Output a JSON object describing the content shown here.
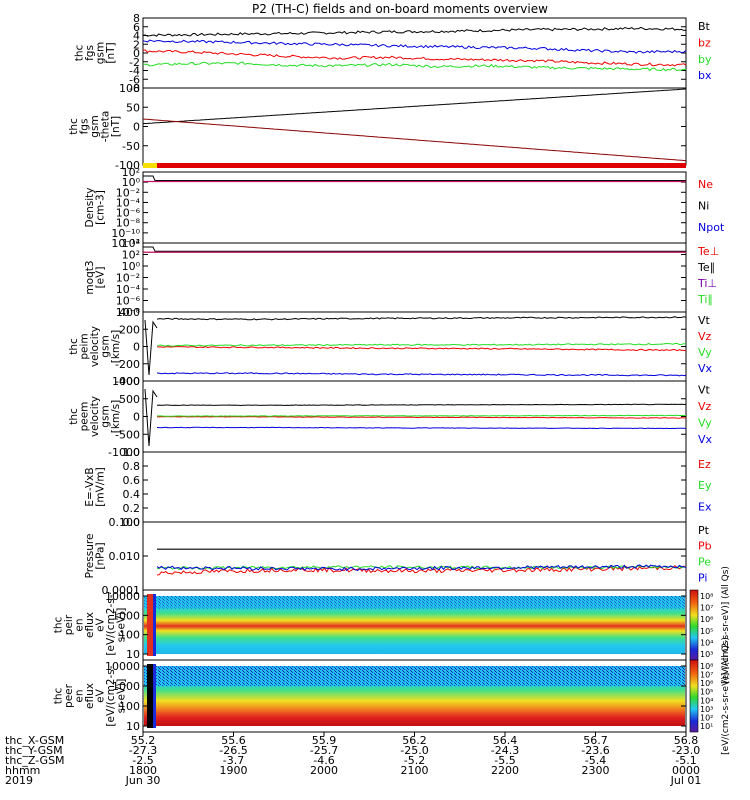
{
  "title": "P2 (TH-C) fields and on-board moments overview",
  "colors": {
    "black": "#000000",
    "red": "#ee0000",
    "blue": "#0000dd",
    "green": "#22dd22",
    "yellow": "#f5e000"
  },
  "chart_data": [
    {
      "type": "line",
      "ylabel": [
        "thc",
        "fgs",
        "gsm",
        "[nT]"
      ],
      "ytick_labels": [
        "8",
        "6",
        "4",
        "2",
        "0",
        "-2",
        "-4",
        "-6",
        "-8"
      ],
      "ylim": [
        -8,
        8
      ],
      "series": [
        {
          "name": "Bt",
          "color": "black",
          "values": [
            4.2,
            4.3,
            4.5,
            4.6,
            4.8,
            5.0,
            5.1,
            5.3,
            5.5,
            5.6,
            5.8,
            5.6
          ]
        },
        {
          "name": "bz",
          "color": "red",
          "values": [
            0.5,
            0.2,
            -0.3,
            -0.8,
            -1.2,
            -1.0,
            -1.4,
            -1.6,
            -1.8,
            -2.3,
            -2.6,
            -2.8
          ]
        },
        {
          "name": "by",
          "color": "green",
          "values": [
            -2.8,
            -2.5,
            -2.4,
            -2.9,
            -3.0,
            -2.7,
            -3.2,
            -3.0,
            -3.4,
            -3.6,
            -3.8,
            -3.9
          ]
        },
        {
          "name": "bx",
          "color": "blue",
          "values": [
            2.9,
            2.7,
            2.5,
            2.2,
            2.0,
            1.7,
            1.5,
            1.3,
            1.1,
            0.6,
            0.2,
            0.4
          ]
        }
      ]
    },
    {
      "type": "line",
      "ylabel": [
        "thc",
        "fgs",
        "gsm",
        "-theta",
        "[nT]"
      ],
      "ytick_labels": [
        "100",
        "50",
        "0",
        "-50",
        "-100"
      ],
      "ylim": [
        -125,
        100
      ],
      "series": [
        {
          "name": "",
          "color": "black",
          "values": [
            -4,
            100
          ]
        },
        {
          "name": "",
          "color": "darkred",
          "values": [
            10,
            -115
          ]
        }
      ]
    },
    {
      "type": "line",
      "ylabel": [
        "Density",
        "[cm-3]"
      ],
      "ytick_labels": [
        "10²",
        "10⁰",
        "10⁻²",
        "10⁻⁴",
        "10⁻⁶",
        "10⁻⁸",
        "10⁻¹⁰",
        "10⁻¹²"
      ],
      "series": [
        {
          "name": "Ne",
          "color": "red"
        },
        {
          "name": "Ni",
          "color": "black"
        },
        {
          "name": "Npot",
          "color": "blue"
        }
      ]
    },
    {
      "type": "line",
      "ylabel": [
        "moqt3",
        "[eV]"
      ],
      "ytick_labels": [
        "10⁴",
        "10²",
        "10⁰",
        "10⁻²",
        "10⁻⁴",
        "10⁻⁶",
        "10⁻⁸"
      ],
      "series": [
        {
          "name": "Te⊥",
          "color": "red"
        },
        {
          "name": "Te∥",
          "color": "black"
        },
        {
          "name": "Ti⊥",
          "color": "purple"
        },
        {
          "name": "Ti∥",
          "color": "green"
        }
      ]
    },
    {
      "type": "line",
      "ylabel": [
        "thc",
        "peim",
        "velocity",
        "gsm",
        "[km/s]"
      ],
      "ytick_labels": [
        "400",
        "200",
        "0",
        "-200",
        "-400"
      ],
      "ylim": [
        -400,
        400
      ],
      "series": [
        {
          "name": "Vt",
          "color": "black",
          "values": [
            330,
            325,
            335,
            340,
            345,
            350
          ]
        },
        {
          "name": "Vz",
          "color": "red",
          "values": [
            -5,
            -10,
            -20,
            -25,
            -35,
            -45
          ]
        },
        {
          "name": "Vy",
          "color": "green",
          "values": [
            10,
            15,
            20,
            20,
            25,
            30
          ]
        },
        {
          "name": "Vx",
          "color": "blue",
          "values": [
            -320,
            -320,
            -330,
            -335,
            -340,
            -345
          ]
        }
      ]
    },
    {
      "type": "line",
      "ylabel": [
        "thc",
        "peem",
        "velocity",
        "gsm",
        "[km/s]"
      ],
      "ytick_labels": [
        "1000",
        "500",
        "0",
        "-500",
        "-1000"
      ],
      "ylim": [
        -1000,
        1000
      ],
      "series": [
        {
          "name": "Vt",
          "color": "black",
          "values": [
            330,
            325,
            335,
            340,
            345,
            350
          ]
        },
        {
          "name": "Vz",
          "color": "red",
          "values": [
            -5,
            -10,
            -20,
            -25,
            -35,
            -45
          ]
        },
        {
          "name": "Vy",
          "color": "green",
          "values": [
            10,
            15,
            20,
            20,
            25,
            30
          ]
        },
        {
          "name": "Vx",
          "color": "blue",
          "values": [
            -320,
            -320,
            -330,
            -335,
            -340,
            -345
          ]
        }
      ]
    },
    {
      "type": "line",
      "ylabel": [
        "E=-VxB",
        "[mV/m]"
      ],
      "ytick_labels": [
        "1.0",
        "0.8",
        "0.6",
        "0.4",
        "0.2",
        "0.0"
      ],
      "series": [
        {
          "name": "Ez",
          "color": "red"
        },
        {
          "name": "Ey",
          "color": "green"
        },
        {
          "name": "Ex",
          "color": "blue"
        }
      ]
    },
    {
      "type": "line",
      "ylabel": [
        "Pressure",
        "[nPa]"
      ],
      "ytick_labels": [
        "0.100",
        "0.010",
        "0.0001"
      ],
      "series": [
        {
          "name": "Pt",
          "color": "black"
        },
        {
          "name": "Pb",
          "color": "red"
        },
        {
          "name": "Pe",
          "color": "green"
        },
        {
          "name": "Pi",
          "color": "blue"
        }
      ]
    },
    {
      "type": "heatmap",
      "ylabel": [
        "thc",
        "peir",
        "en",
        "eflux",
        "eV",
        "[eV/(cm2-s-",
        "sr-eV)]"
      ],
      "ytick_labels": [
        "10000",
        "1000",
        "100",
        "10"
      ],
      "colorbar_ticks": [
        "10⁸",
        "10⁷",
        "10⁶",
        "10⁵",
        "10⁴",
        "10³"
      ],
      "colorbar_label": "[eV/(cm2-s-sr-eV)] (All Qs)"
    },
    {
      "type": "heatmap",
      "ylabel": [
        "thc",
        "peer",
        "en",
        "eflux",
        "eV",
        "[eV/(cm2-s-",
        "sr-eV)]"
      ],
      "ytick_labels": [
        "10000",
        "1000",
        "100",
        "10"
      ],
      "colorbar_ticks": [
        "10⁸",
        "10⁷",
        "10⁶",
        "10⁵",
        "10⁴",
        "10³",
        "10²",
        "10¹"
      ],
      "colorbar_label": "[eV/(cm2-s-sr-eV)] (All Qs)"
    }
  ],
  "xaxis": {
    "row_labels": [
      "thc_X-GSM",
      "thc_Y-GSM",
      "thc_Z-GSM",
      "hhmm",
      "2019"
    ],
    "columns": [
      {
        "x": "55.2",
        "y": "-27.3",
        "z": "-2.5",
        "hhmm": "1800",
        "date": "Jun 30"
      },
      {
        "x": "55.6",
        "y": "-26.5",
        "z": "-3.7",
        "hhmm": "1900",
        "date": ""
      },
      {
        "x": "55.9",
        "y": "-25.7",
        "z": "-4.6",
        "hhmm": "2000",
        "date": ""
      },
      {
        "x": "56.2",
        "y": "-25.0",
        "z": "-5.2",
        "hhmm": "2100",
        "date": ""
      },
      {
        "x": "56.4",
        "y": "-24.3",
        "z": "-5.5",
        "hhmm": "2200",
        "date": ""
      },
      {
        "x": "56.7",
        "y": "-23.6",
        "z": "-5.4",
        "hhmm": "2300",
        "date": ""
      },
      {
        "x": "56.8",
        "y": "-23.0",
        "z": "-5.1",
        "hhmm": "0000",
        "date": "Jul 01"
      }
    ]
  }
}
